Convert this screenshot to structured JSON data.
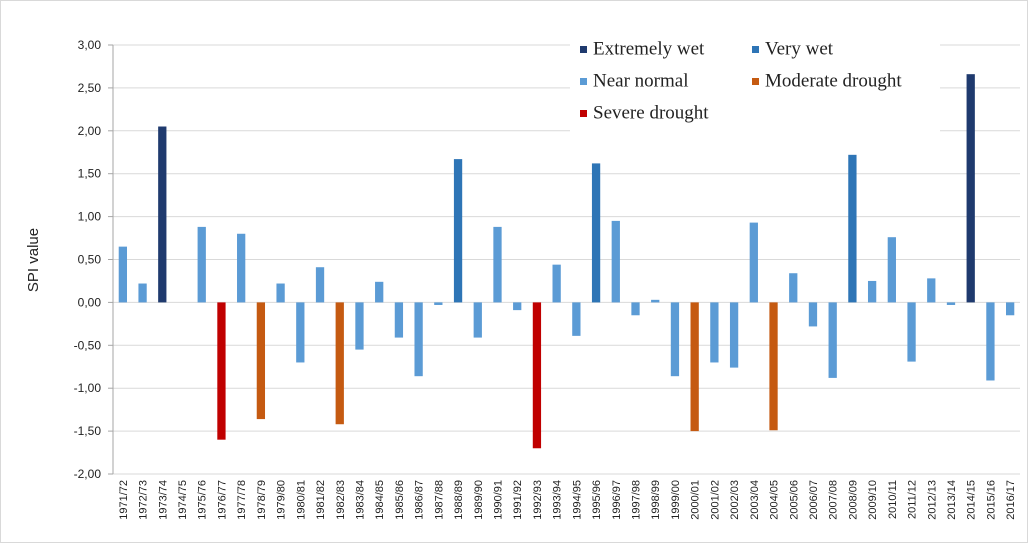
{
  "chart_data": {
    "type": "bar",
    "y_label": "SPI value",
    "categories": [
      "1971/72",
      "1972/73",
      "1973/74",
      "1974/75",
      "1975/76",
      "1976/77",
      "1977/78",
      "1978/79",
      "1979/80",
      "1980/81",
      "1981/82",
      "1982/83",
      "1983/84",
      "1984/85",
      "1985/86",
      "1986/87",
      "1987/88",
      "1988/89",
      "1989/90",
      "1990/91",
      "1991/92",
      "1992/93",
      "1993/94",
      "1994/95",
      "1995/96",
      "1996/97",
      "1997/98",
      "1998/99",
      "1999/00",
      "2000/01",
      "2001/02",
      "2002/03",
      "2003/04",
      "2004/05",
      "2005/06",
      "2006/07",
      "2007/08",
      "2008/09",
      "2009/10",
      "2010/11",
      "2011/12",
      "2012/13",
      "2013/14",
      "2014/15",
      "2015/16",
      "2016/17"
    ],
    "series": [
      {
        "name": "Extremely wet",
        "color": "#1f3a6e",
        "values": [
          null,
          null,
          2.05,
          null,
          null,
          null,
          null,
          null,
          null,
          null,
          null,
          null,
          null,
          null,
          null,
          null,
          null,
          null,
          null,
          null,
          null,
          null,
          null,
          null,
          null,
          null,
          null,
          null,
          null,
          null,
          null,
          null,
          null,
          null,
          null,
          null,
          null,
          null,
          null,
          null,
          null,
          null,
          null,
          2.66,
          null,
          null
        ]
      },
      {
        "name": "Very wet",
        "color": "#2e75b6",
        "values": [
          null,
          null,
          null,
          null,
          null,
          null,
          null,
          null,
          null,
          null,
          null,
          null,
          null,
          null,
          null,
          null,
          null,
          1.67,
          null,
          null,
          null,
          null,
          null,
          null,
          1.62,
          null,
          null,
          null,
          null,
          null,
          null,
          null,
          null,
          null,
          null,
          null,
          null,
          1.72,
          null,
          null,
          null,
          null,
          null,
          null,
          null,
          null
        ]
      },
      {
        "name": "Near normal",
        "color": "#5b9bd5",
        "values": [
          0.65,
          0.22,
          null,
          0,
          0.88,
          null,
          0.8,
          null,
          0.22,
          -0.7,
          0.41,
          null,
          -0.55,
          0.24,
          -0.41,
          -0.86,
          -0.03,
          null,
          -0.41,
          0.88,
          -0.09,
          null,
          0.44,
          -0.39,
          null,
          0.95,
          -0.15,
          0.03,
          -0.86,
          null,
          -0.7,
          -0.76,
          0.93,
          null,
          0.34,
          -0.28,
          -0.88,
          null,
          0.25,
          0.76,
          -0.69,
          0.28,
          -0.03,
          null,
          -0.91,
          -0.15
        ]
      },
      {
        "name": "Moderate drought",
        "color": "#c55a11",
        "values": [
          null,
          null,
          null,
          null,
          null,
          null,
          null,
          -1.36,
          null,
          null,
          null,
          -1.42,
          null,
          null,
          null,
          null,
          null,
          null,
          null,
          null,
          null,
          null,
          null,
          null,
          null,
          null,
          null,
          null,
          null,
          -1.5,
          null,
          null,
          null,
          -1.49,
          null,
          null,
          null,
          null,
          null,
          null,
          null,
          null,
          null,
          null,
          null,
          null
        ]
      },
      {
        "name": "Severe drought",
        "color": "#c00000",
        "values": [
          null,
          null,
          null,
          null,
          null,
          -1.6,
          null,
          null,
          null,
          null,
          null,
          null,
          null,
          null,
          null,
          null,
          null,
          null,
          null,
          null,
          null,
          -1.7,
          null,
          null,
          null,
          null,
          null,
          null,
          null,
          null,
          null,
          null,
          null,
          null,
          null,
          null,
          null,
          null,
          null,
          null,
          null,
          null,
          null,
          null,
          null,
          null
        ]
      }
    ],
    "ylim": [
      -2,
      3
    ],
    "yticks": [
      {
        "value": -2,
        "label": "-2,00"
      },
      {
        "value": -1.5,
        "label": "-1,50"
      },
      {
        "value": -1,
        "label": "-1,00"
      },
      {
        "value": -0.5,
        "label": "-0,50"
      },
      {
        "value": 0,
        "label": "0,00"
      },
      {
        "value": 0.5,
        "label": "0,50"
      },
      {
        "value": 1,
        "label": "1,00"
      },
      {
        "value": 1.5,
        "label": "1,50"
      },
      {
        "value": 2,
        "label": "2,00"
      },
      {
        "value": 2.5,
        "label": "2,50"
      },
      {
        "value": 3,
        "label": "3,00"
      }
    ],
    "grid": true
  }
}
